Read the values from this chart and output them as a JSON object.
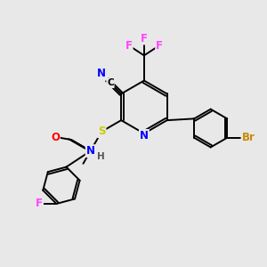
{
  "bg_color": "#e8e8e8",
  "bond_color": "#000000",
  "atom_colors": {
    "N": "#0000ff",
    "O": "#ff0000",
    "S": "#cccc00",
    "F": "#ff44ff",
    "Br": "#cc8800",
    "C": "#000000",
    "H": "#555555"
  },
  "font_size": 8.5,
  "bond_width": 1.4,
  "fig_width": 3.0,
  "fig_height": 3.0,
  "dpi": 100,
  "xlim": [
    0,
    10
  ],
  "ylim": [
    0,
    10
  ]
}
